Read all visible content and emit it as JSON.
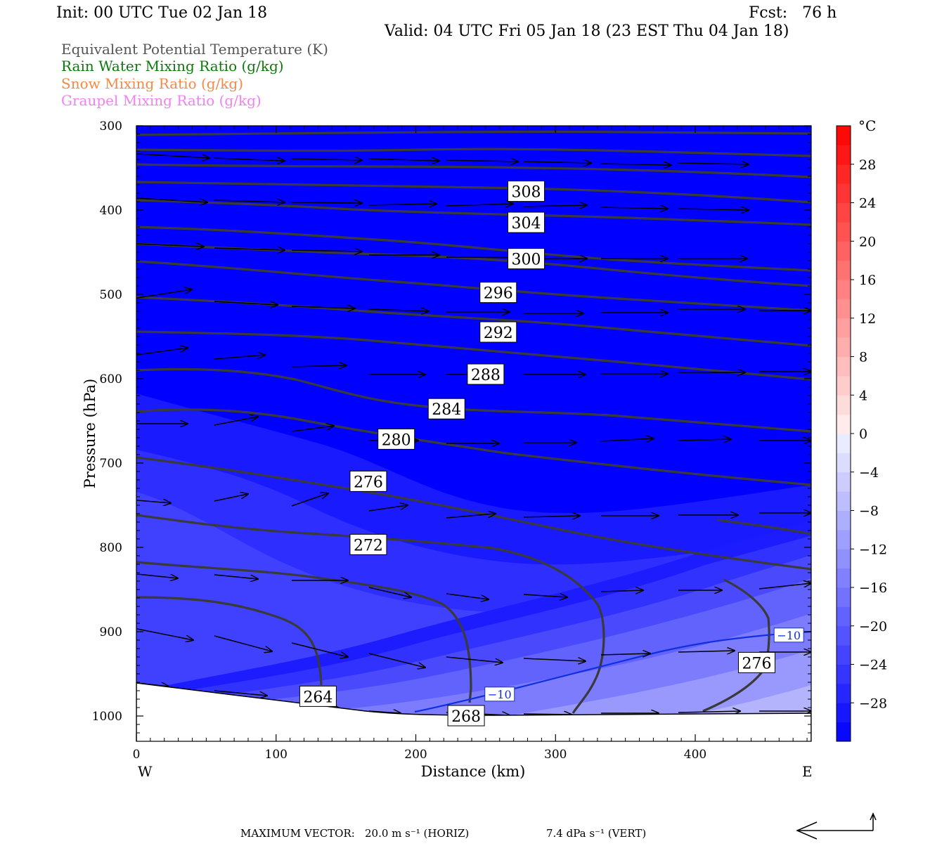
{
  "header": {
    "init": "Init: 00 UTC Tue 02 Jan 18",
    "fcst": "Fcst:   76 h",
    "valid": "Valid: 04 UTC Fri 05 Jan 18 (23 EST Thu 04 Jan 18)",
    "fields": [
      {
        "label": "Equivalent Potential Temperature (K)",
        "color": "#555555"
      },
      {
        "label": "Rain Water Mixing Ratio (g/kg)",
        "color": "#0a7a0a"
      },
      {
        "label": "Snow Mixing Ratio (g/kg)",
        "color": "#f08a4b"
      },
      {
        "label": "Graupel Mixing Ratio (g/kg)",
        "color": "#ee82ee"
      }
    ]
  },
  "chart_data": {
    "type": "heatmap",
    "xlabel": "Distance (km)",
    "ylabel": "Pressure (hPa)",
    "xlim": [
      0,
      483
    ],
    "ylim": [
      1030,
      300
    ],
    "x_ticks": [
      0,
      100,
      200,
      300,
      400
    ],
    "y_ticks": [
      300,
      400,
      500,
      600,
      700,
      800,
      900,
      1000
    ],
    "x_ends": {
      "left": "W",
      "right": "E"
    },
    "colorbar": {
      "unit": "°C",
      "tick_labels": [
        "28",
        "24",
        "20",
        "16",
        "12",
        "8",
        "4",
        "0",
        "−4",
        "−8",
        "−12",
        "−16",
        "−20",
        "−24",
        "−28"
      ],
      "tick_values": [
        28,
        24,
        20,
        16,
        12,
        8,
        4,
        0,
        -4,
        -8,
        -12,
        -16,
        -20,
        -24,
        -28
      ],
      "range": [
        -32,
        32
      ],
      "step": 2
    },
    "theta_e_labels": [
      {
        "text": "308",
        "x": 279,
        "p": 378
      },
      {
        "text": "304",
        "x": 279,
        "p": 415
      },
      {
        "text": "300",
        "x": 279,
        "p": 458
      },
      {
        "text": "296",
        "x": 259,
        "p": 498
      },
      {
        "text": "292",
        "x": 259,
        "p": 545
      },
      {
        "text": "288",
        "x": 250,
        "p": 595
      },
      {
        "text": "284",
        "x": 222,
        "p": 636
      },
      {
        "text": "280",
        "x": 186,
        "p": 672
      },
      {
        "text": "276",
        "x": 166,
        "p": 722
      },
      {
        "text": "272",
        "x": 166,
        "p": 797
      },
      {
        "text": "264",
        "x": 130,
        "p": 977
      },
      {
        "text": "268",
        "x": 236,
        "p": 1000
      },
      {
        "text": "276",
        "x": 444,
        "p": 937
      }
    ],
    "temperature_labels": [
      {
        "text": "−10",
        "x": 260,
        "p": 974
      },
      {
        "text": "−10",
        "x": 467,
        "p": 904
      }
    ]
  },
  "footer": {
    "max_vector_label": "MAXIMUM VECTOR:",
    "horiz": "20.0 m s⁻¹ (HORIZ)",
    "vert": "7.4 dPa s⁻¹ (VERT)"
  }
}
